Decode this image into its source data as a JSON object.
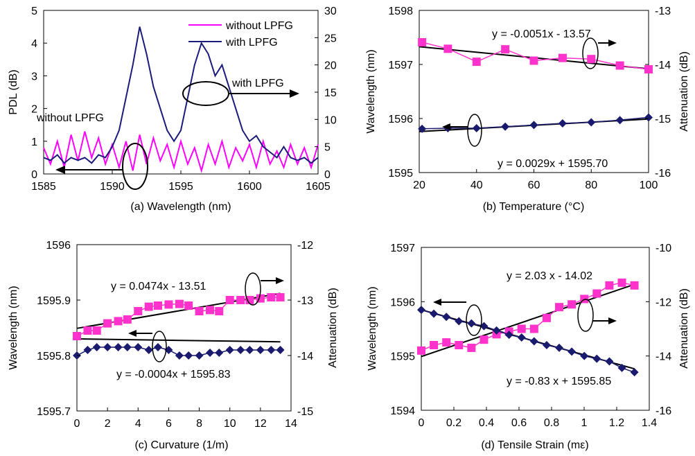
{
  "chart_data": [
    {
      "type": "line",
      "xlabel": "(a) Wavelength (nm)",
      "ylabel_left": "PDL (dB)",
      "ylabel_right": "",
      "xlim": [
        1585,
        1605
      ],
      "ylim_left": [
        0,
        5
      ],
      "ylim_right": [
        0,
        30
      ],
      "xticks": [
        1585,
        1590,
        1595,
        1600,
        1605
      ],
      "yticks_left": [
        0,
        1,
        2,
        3,
        4,
        5
      ],
      "yticks_right": [
        0,
        5,
        10,
        15,
        20,
        25,
        30
      ],
      "legend_position": "top-right",
      "series": [
        {
          "name": "without LPFG",
          "color": "#ff00ff",
          "axis": "left",
          "x": [
            1585,
            1585.5,
            1586,
            1586.5,
            1587,
            1587.5,
            1588,
            1588.5,
            1589,
            1589.5,
            1590,
            1590.5,
            1591,
            1591.5,
            1592,
            1592.5,
            1593,
            1593.5,
            1594,
            1594.5,
            1595,
            1595.5,
            1596,
            1596.5,
            1597,
            1597.5,
            1598,
            1598.5,
            1599,
            1599.5,
            1600,
            1600.5,
            1601,
            1601.5,
            1602,
            1602.5,
            1603,
            1603.5,
            1604,
            1604.5,
            1605
          ],
          "y": [
            0.8,
            0.3,
            1.0,
            0.2,
            1.2,
            0.4,
            1.3,
            0.5,
            1.1,
            0.3,
            0.9,
            0.2,
            1.0,
            0.1,
            1.2,
            0.3,
            1.1,
            0.4,
            0.9,
            0.2,
            1.0,
            0.3,
            0.8,
            0.1,
            0.9,
            0.3,
            1.0,
            0.2,
            0.8,
            0.4,
            0.9,
            0.2,
            1.0,
            0.3,
            0.7,
            0.2,
            0.9,
            0.3,
            0.8,
            0.2,
            0.9
          ]
        },
        {
          "name": "with LPFG",
          "color": "#1a1a7a",
          "axis": "right",
          "x": [
            1585,
            1585.5,
            1586,
            1586.5,
            1587,
            1587.5,
            1588,
            1588.5,
            1589,
            1589.5,
            1590,
            1590.5,
            1591,
            1591.5,
            1592,
            1592.5,
            1593,
            1593.5,
            1594,
            1594.5,
            1595,
            1595.5,
            1596,
            1596.5,
            1597,
            1597.5,
            1598,
            1598.5,
            1599,
            1599.5,
            1600,
            1600.5,
            1601,
            1601.5,
            1602,
            1602.5,
            1603,
            1603.5,
            1604,
            1604.5,
            1605
          ],
          "y": [
            3,
            2.5,
            3.5,
            2,
            3,
            2.5,
            3,
            2,
            3.5,
            3,
            5,
            8,
            14,
            20,
            27,
            22,
            16,
            12,
            8,
            6,
            8,
            14,
            20,
            24,
            22,
            18,
            20,
            16,
            12,
            8,
            6,
            7,
            5,
            4,
            3,
            5,
            3,
            2.5,
            3,
            2,
            3
          ]
        }
      ],
      "annotations": [
        "without LPFG",
        "with LPFG"
      ]
    },
    {
      "type": "line",
      "xlabel": "(b) Temperature (°C)",
      "ylabel_left": "Wavelength (nm)",
      "ylabel_right": "Attenuation (dB)",
      "xlim": [
        20,
        100
      ],
      "ylim_left": [
        1595,
        1598
      ],
      "ylim_right": [
        -16,
        -13
      ],
      "xticks": [
        20,
        40,
        60,
        80,
        100
      ],
      "yticks_left": [
        1595,
        1596,
        1597,
        1598
      ],
      "yticks_right": [
        -16,
        -15,
        -14,
        -13
      ],
      "series": [
        {
          "color": "#ff33cc",
          "marker": "square",
          "axis": "right",
          "x": [
            21,
            30,
            40,
            50,
            60,
            70,
            80,
            90,
            100
          ],
          "y": [
            -13.59,
            -13.71,
            -13.95,
            -13.72,
            -13.93,
            -13.88,
            -13.9,
            -14.02,
            -14.09
          ]
        },
        {
          "color": "#1a1a6e",
          "marker": "diamond",
          "axis": "left",
          "x": [
            21,
            30,
            40,
            50,
            60,
            70,
            80,
            90,
            100
          ],
          "y": [
            1595.81,
            1595.82,
            1595.82,
            1595.85,
            1595.88,
            1595.91,
            1595.93,
            1595.97,
            1596.02
          ]
        }
      ],
      "fits": [
        {
          "axis": "right",
          "slope": -0.0051,
          "intercept": -13.57,
          "label": "y = -0.0051x - 13.57"
        },
        {
          "axis": "left",
          "slope": 0.0029,
          "intercept": 1595.7,
          "label": "y = 0.0029x + 1595.70"
        }
      ]
    },
    {
      "type": "line",
      "xlabel": "(c) Curvature (1/m)",
      "ylabel_left": "Wavelength (nm)",
      "ylabel_right": "Attenuation (dB)",
      "xlim": [
        0,
        14
      ],
      "ylim_left": [
        1595.7,
        1596
      ],
      "ylim_right": [
        -15,
        -12
      ],
      "xticks": [
        0,
        2,
        4,
        6,
        8,
        10,
        12,
        14
      ],
      "yticks_left": [
        1595.7,
        1595.8,
        1595.9,
        1596
      ],
      "yticks_right": [
        -15,
        -14,
        -13,
        -12
      ],
      "series": [
        {
          "color": "#ff33cc",
          "marker": "square",
          "axis": "right",
          "x": [
            0,
            0.7,
            1.3,
            2,
            2.7,
            3.3,
            4,
            4.7,
            5.3,
            6,
            6.7,
            7.3,
            8,
            8.7,
            9.3,
            10,
            10.7,
            11.3,
            12,
            12.7,
            13.3
          ],
          "y": [
            -13.65,
            -13.55,
            -13.55,
            -13.42,
            -13.38,
            -13.35,
            -13.2,
            -13.12,
            -13.1,
            -13.08,
            -13.07,
            -13.1,
            -13.2,
            -13.18,
            -13.2,
            -13.0,
            -13.0,
            -13.0,
            -12.97,
            -12.95,
            -12.95
          ]
        },
        {
          "color": "#1a1a6e",
          "marker": "diamond",
          "axis": "left",
          "x": [
            0,
            0.7,
            1.3,
            2,
            2.7,
            3.3,
            4,
            4.7,
            5.3,
            6,
            6.7,
            7.3,
            8,
            8.7,
            9.3,
            10,
            10.7,
            11.3,
            12,
            12.7,
            13.3
          ],
          "y": [
            1595.8,
            1595.81,
            1595.815,
            1595.815,
            1595.815,
            1595.815,
            1595.815,
            1595.81,
            1595.815,
            1595.81,
            1595.8,
            1595.8,
            1595.8,
            1595.805,
            1595.805,
            1595.81,
            1595.81,
            1595.81,
            1595.81,
            1595.81,
            1595.81
          ]
        }
      ],
      "fits": [
        {
          "axis": "right",
          "slope": 0.0474,
          "intercept": -13.51,
          "label": "y = 0.0474x - 13.51"
        },
        {
          "axis": "left",
          "slope": -0.0004,
          "intercept": 1595.83,
          "label": "y = -0.0004x + 1595.83"
        }
      ]
    },
    {
      "type": "line",
      "xlabel": "(d) Tensile Strain (mε)",
      "ylabel_left": "Wavelength (nm)",
      "ylabel_right": "Attenuation (dB)",
      "xlim": [
        0,
        1.4
      ],
      "ylim_left": [
        1594,
        1597
      ],
      "ylim_right": [
        -16,
        -10
      ],
      "xticks": [
        0,
        0.2,
        0.4,
        0.6,
        0.8,
        1,
        1.2,
        1.4
      ],
      "yticks_left": [
        1594,
        1595,
        1596,
        1597
      ],
      "yticks_right": [
        -16,
        -14,
        -12,
        -10
      ],
      "series": [
        {
          "color": "#ff33cc",
          "marker": "square",
          "axis": "right",
          "x": [
            0,
            0.077,
            0.154,
            0.231,
            0.308,
            0.385,
            0.462,
            0.539,
            0.616,
            0.693,
            0.77,
            0.847,
            0.924,
            1.001,
            1.078,
            1.155,
            1.232,
            1.309
          ],
          "y": [
            -13.8,
            -13.6,
            -13.5,
            -13.6,
            -13.7,
            -13.4,
            -13.2,
            -13.1,
            -13.0,
            -13.0,
            -12.6,
            -12.2,
            -12.1,
            -11.9,
            -11.7,
            -11.4,
            -11.3,
            -11.4
          ]
        },
        {
          "color": "#1a1a6e",
          "marker": "diamond",
          "axis": "left",
          "x": [
            0,
            0.077,
            0.154,
            0.231,
            0.308,
            0.385,
            0.462,
            0.539,
            0.616,
            0.693,
            0.77,
            0.847,
            0.924,
            1.001,
            1.078,
            1.155,
            1.232,
            1.309
          ],
          "y": [
            1595.85,
            1595.78,
            1595.72,
            1595.64,
            1595.6,
            1595.55,
            1595.47,
            1595.39,
            1595.34,
            1595.27,
            1595.2,
            1595.15,
            1595.08,
            1595.0,
            1594.95,
            1594.9,
            1594.78,
            1594.7
          ]
        }
      ],
      "fits": [
        {
          "axis": "right",
          "slope": 2.03,
          "intercept": -14.02,
          "label": "y = 2.03 x - 14.02"
        },
        {
          "axis": "left",
          "slope": -0.83,
          "intercept": 1595.85,
          "label": "y = -0.83 x + 1595.85"
        }
      ]
    }
  ]
}
